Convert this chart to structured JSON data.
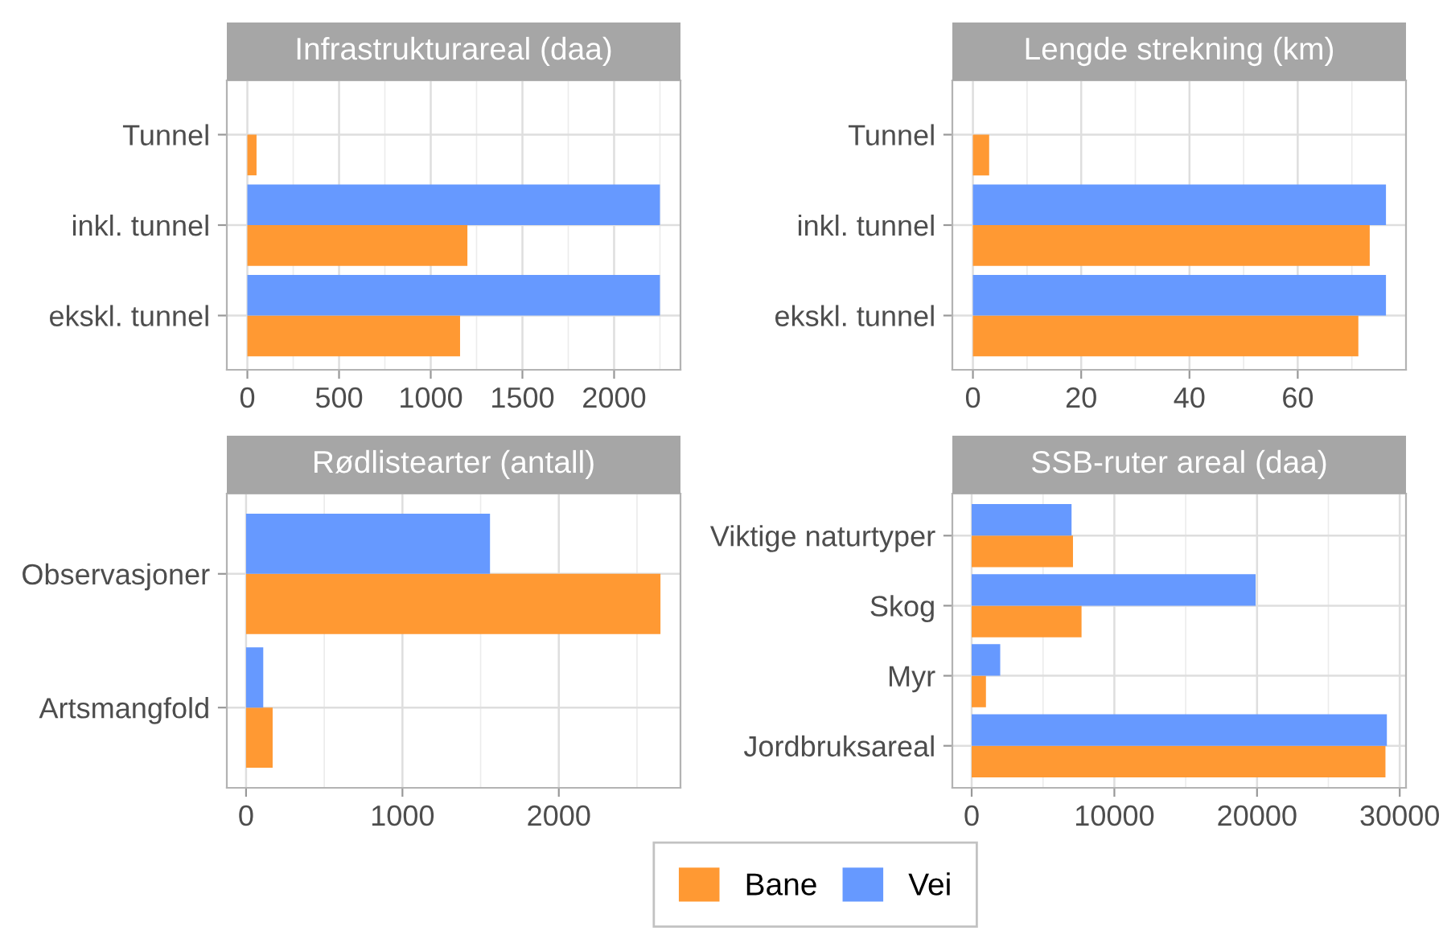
{
  "chart_data": [
    {
      "type": "bar",
      "orientation": "horizontal",
      "title": "Infrastrukturareal (daa)",
      "categories": [
        "Tunnel",
        "inkl. tunnel",
        "ekskl. tunnel"
      ],
      "series": [
        {
          "name": "Bane",
          "color": "#ff9933",
          "values": [
            50,
            1200,
            1160
          ]
        },
        {
          "name": "Vei",
          "color": "#6699ff",
          "values": [
            null,
            2250,
            2250
          ]
        }
      ],
      "xlim": [
        -112,
        2362
      ],
      "xticks": [
        0,
        500,
        1000,
        1500,
        2000
      ],
      "grid": true,
      "legend": "bottom"
    },
    {
      "type": "bar",
      "orientation": "horizontal",
      "title": "Lengde strekning (km)",
      "categories": [
        "Tunnel",
        "inkl. tunnel",
        "ekskl. tunnel"
      ],
      "series": [
        {
          "color": "#ff9933",
          "values": [
            3.0,
            73.3,
            71.2
          ]
        },
        {
          "color": "#6699ff",
          "values": [
            null,
            76.3,
            76.3
          ]
        }
      ],
      "xlim": [
        -3.8,
        80
      ],
      "xticks": [
        0,
        20,
        40,
        60
      ],
      "grid": true
    },
    {
      "type": "bar",
      "orientation": "horizontal",
      "title": "Rødlistearter (antall)",
      "categories": [
        "Observasjoner",
        "Artsmangfold"
      ],
      "series": [
        {
          "color": "#ff9933",
          "values": [
            2650,
            170
          ]
        },
        {
          "color": "#6699ff",
          "values": [
            1560,
            110
          ]
        }
      ],
      "xlim": [
        -123,
        2778
      ],
      "xticks": [
        0,
        1000,
        2000
      ],
      "grid": true
    },
    {
      "type": "bar",
      "orientation": "horizontal",
      "title": "SSB-ruter areal (daa)",
      "categories": [
        "Viktige naturtyper",
        "Skog",
        "Myr",
        "Jordbruksareal"
      ],
      "series": [
        {
          "color": "#ff9933",
          "values": [
            7100,
            7700,
            1000,
            29000
          ]
        },
        {
          "color": "#6699ff",
          "values": [
            7000,
            19900,
            2000,
            29100
          ]
        }
      ],
      "xlim": [
        -1355,
        30440
      ],
      "xticks": [
        0,
        10000,
        20000,
        30000
      ],
      "grid": true
    }
  ]
}
